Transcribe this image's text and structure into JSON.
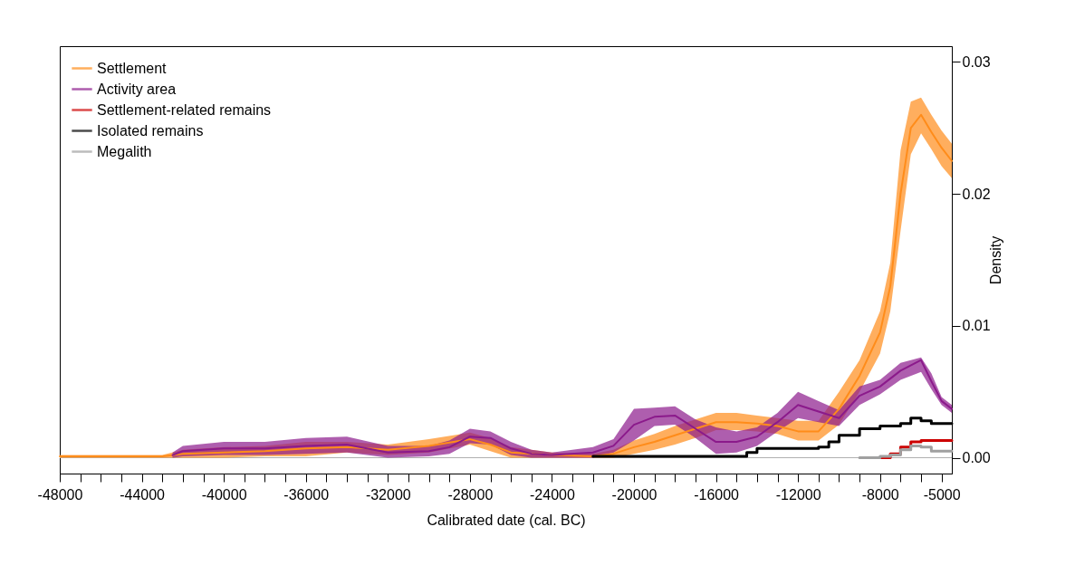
{
  "chart_data": {
    "type": "line",
    "xlabel": "Calibrated date (cal. BC)",
    "ylabel": "Density",
    "xlim": [
      -48000,
      -4500
    ],
    "ylim": [
      -0.0012,
      0.0312
    ],
    "xticks": [
      -48000,
      {
        "value": -47000,
        "label": null
      },
      {
        "value": -46000,
        "label": null
      },
      {
        "value": -45000,
        "label": null
      },
      -44000,
      {
        "value": -43000,
        "label": null
      },
      {
        "value": -42000,
        "label": null
      },
      {
        "value": -41000,
        "label": null
      },
      -40000,
      {
        "value": -39000,
        "label": null
      },
      {
        "value": -38000,
        "label": null
      },
      {
        "value": -37000,
        "label": null
      },
      -36000,
      {
        "value": -35000,
        "label": null
      },
      {
        "value": -34000,
        "label": null
      },
      {
        "value": -33000,
        "label": null
      },
      -32000,
      {
        "value": -31000,
        "label": null
      },
      {
        "value": -30000,
        "label": null
      },
      {
        "value": -29000,
        "label": null
      },
      -28000,
      {
        "value": -27000,
        "label": null
      },
      {
        "value": -26000,
        "label": null
      },
      {
        "value": -25000,
        "label": null
      },
      -24000,
      {
        "value": -23000,
        "label": null
      },
      {
        "value": -22000,
        "label": null
      },
      {
        "value": -21000,
        "label": null
      },
      -20000,
      {
        "value": -19000,
        "label": null
      },
      {
        "value": -18000,
        "label": null
      },
      {
        "value": -17000,
        "label": null
      },
      -16000,
      {
        "value": -15000,
        "label": null
      },
      {
        "value": -14000,
        "label": null
      },
      {
        "value": -13000,
        "label": null
      },
      -12000,
      {
        "value": -11000,
        "label": null
      },
      {
        "value": -10000,
        "label": null
      },
      {
        "value": -9000,
        "label": null
      },
      -8000,
      {
        "value": -7000,
        "label": null
      },
      {
        "value": -6000,
        "label": null
      },
      -5000
    ],
    "yticks": [
      {
        "value": 0,
        "label": "0.00"
      },
      0.01,
      0.02,
      0.03
    ],
    "legend": "top left",
    "grid": false,
    "ref_lines": [
      {
        "axis": "y",
        "value": 0,
        "color": "#b0b0b0"
      }
    ],
    "series": [
      {
        "name": "Settlement",
        "color": "#ff8c1a",
        "x": [
          -48000,
          -46000,
          -44000,
          -43000,
          -42000,
          -40000,
          -38000,
          -36000,
          -34000,
          -32000,
          -30000,
          -28000,
          -27000,
          -26000,
          -24000,
          -22000,
          -21000,
          -20000,
          -19000,
          -18000,
          -17000,
          -16000,
          -15000,
          -14000,
          -13000,
          -12000,
          -11000,
          -10000,
          -9000,
          -8000,
          -7500,
          -7000,
          -6500,
          -6000,
          -5500,
          -5000,
          -4500
        ],
        "values": [
          0.0001,
          0.0001,
          0.0001,
          0.0001,
          0.0003,
          0.0004,
          0.0005,
          0.0007,
          0.0008,
          0.0006,
          0.0009,
          0.0014,
          0.001,
          0.0004,
          0.0002,
          0.0001,
          0.0003,
          0.0008,
          0.0012,
          0.0017,
          0.0022,
          0.0027,
          0.0027,
          0.0026,
          0.0024,
          0.002,
          0.002,
          0.0037,
          0.0062,
          0.0095,
          0.013,
          0.02,
          0.025,
          0.026,
          0.0247,
          0.0235,
          0.0225
        ],
        "lower": [
          0,
          0,
          0,
          0,
          0,
          0,
          0.0001,
          0.0001,
          0.0004,
          0.0002,
          0.0004,
          0.001,
          0.0005,
          0,
          0,
          0,
          0,
          0.0003,
          0.0006,
          0.001,
          0.0015,
          0.0021,
          0.0021,
          0.002,
          0.0018,
          0.0013,
          0.0013,
          0.0025,
          0.005,
          0.0079,
          0.0111,
          0.0172,
          0.023,
          0.0246,
          0.0234,
          0.0221,
          0.0212
        ],
        "upper": [
          0.0002,
          0.0002,
          0.0002,
          0.0002,
          0.0006,
          0.0008,
          0.0009,
          0.0012,
          0.0012,
          0.001,
          0.0014,
          0.0019,
          0.0015,
          0.0008,
          0.0004,
          0.0003,
          0.0006,
          0.0013,
          0.0018,
          0.0024,
          0.0029,
          0.0034,
          0.0034,
          0.0032,
          0.003,
          0.0028,
          0.0028,
          0.005,
          0.0074,
          0.0111,
          0.0148,
          0.0233,
          0.027,
          0.0273,
          0.026,
          0.0248,
          0.0238
        ]
      },
      {
        "name": "Activity area",
        "color": "#8b1a8b",
        "x": [
          -42500,
          -42000,
          -40000,
          -38000,
          -36000,
          -34000,
          -32000,
          -30000,
          -29000,
          -28000,
          -27000,
          -26000,
          -25000,
          -24000,
          -22000,
          -21000,
          -20000,
          -19000,
          -18000,
          -17000,
          -16000,
          -15000,
          -14000,
          -13000,
          -12000,
          -11000,
          -10000,
          -9000,
          -8000,
          -7000,
          -6000,
          -5500,
          -5000,
          -4500
        ],
        "values": [
          0.0002,
          0.0005,
          0.0007,
          0.0007,
          0.0009,
          0.001,
          0.0004,
          0.0005,
          0.0008,
          0.0016,
          0.0015,
          0.0007,
          0.0003,
          0.0002,
          0.0004,
          0.0009,
          0.0025,
          0.0031,
          0.0032,
          0.0022,
          0.0012,
          0.0012,
          0.0016,
          0.0027,
          0.004,
          0.0035,
          0.003,
          0.0047,
          0.0054,
          0.0066,
          0.0074,
          0.0058,
          0.0043,
          0.0037
        ],
        "lower": [
          0,
          0.0001,
          0.0002,
          0.0002,
          0.0003,
          0.0004,
          0,
          0.0001,
          0.0003,
          0.0011,
          0.001,
          0.0002,
          0,
          0,
          0,
          0.0004,
          0.0013,
          0.0024,
          0.0025,
          0.0015,
          0.0003,
          0.0004,
          0.0009,
          0.002,
          0.003,
          0.0027,
          0.0024,
          0.004,
          0.0048,
          0.0059,
          0.0065,
          0.0052,
          0.004,
          0.0034
        ],
        "upper": [
          0.0004,
          0.0009,
          0.0012,
          0.0012,
          0.0015,
          0.0016,
          0.0009,
          0.0009,
          0.0013,
          0.0022,
          0.002,
          0.0012,
          0.0006,
          0.0004,
          0.0008,
          0.0014,
          0.0037,
          0.0038,
          0.0039,
          0.0029,
          0.0023,
          0.002,
          0.0023,
          0.0034,
          0.005,
          0.0043,
          0.0036,
          0.0054,
          0.0059,
          0.0072,
          0.0076,
          0.0064,
          0.0046,
          0.004
        ]
      },
      {
        "name": "Settlement-related remains",
        "color": "#cc0000",
        "type": "step",
        "x": [
          -8500,
          -7700,
          -7500,
          -7000,
          -6500,
          -6000,
          -4500
        ],
        "values": [
          0,
          0,
          0.0003,
          0.0008,
          0.0012,
          0.0013,
          0.0013
        ]
      },
      {
        "name": "Isolated remains",
        "color": "#000000",
        "type": "step",
        "x": [
          -22000,
          -15000,
          -14500,
          -14000,
          -12000,
          -11000,
          -10500,
          -10000,
          -9000,
          -8000,
          -7000,
          -6500,
          -6000,
          -5500,
          -4500
        ],
        "values": [
          0.0001,
          0.0001,
          0.0004,
          0.0007,
          0.0007,
          0.0008,
          0.0012,
          0.0017,
          0.0022,
          0.0024,
          0.0026,
          0.003,
          0.0028,
          0.0026,
          0.0026
        ]
      },
      {
        "name": "Megalith",
        "color": "#a0a0a0",
        "type": "step",
        "x": [
          -9000,
          -8000,
          -7500,
          -7000,
          -6500,
          -6000,
          -5500,
          -4500
        ],
        "values": [
          0,
          0.0001,
          0.0002,
          0.0006,
          0.0009,
          0.0008,
          0.0005,
          0.0005
        ]
      }
    ]
  }
}
